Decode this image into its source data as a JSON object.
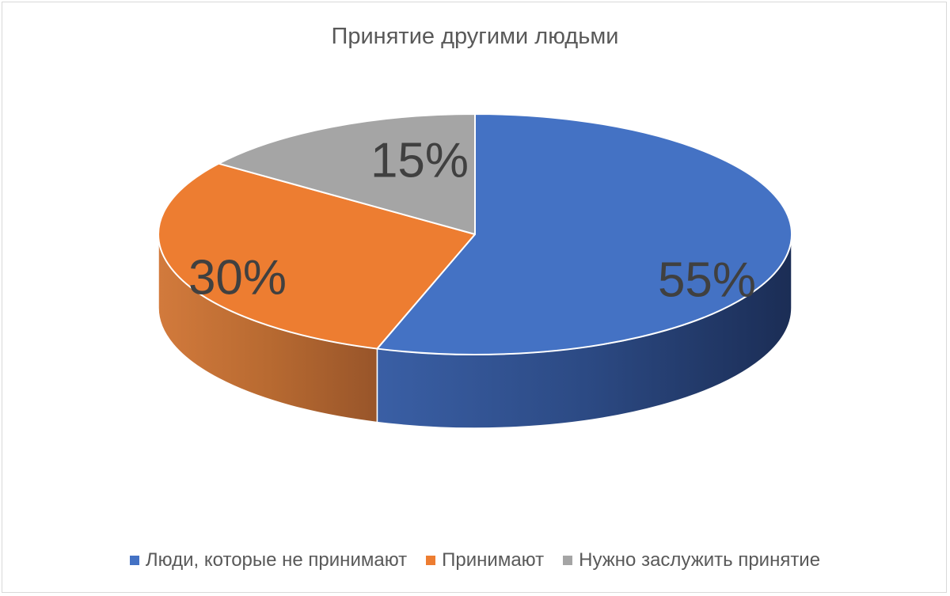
{
  "chart_data": {
    "type": "pie",
    "title": "Принятие другими людьми",
    "slices": [
      {
        "label": "Люди, которые не принимают",
        "value": 55,
        "display": "55%",
        "color": "#4472c4"
      },
      {
        "label": "Принимают",
        "value": 30,
        "display": "30%",
        "color": "#ed7d31"
      },
      {
        "label": "Нужно заслужить принятие",
        "value": 15,
        "display": "15%",
        "color": "#a5a5a5"
      }
    ],
    "three_d": true,
    "legend_position": "bottom"
  }
}
